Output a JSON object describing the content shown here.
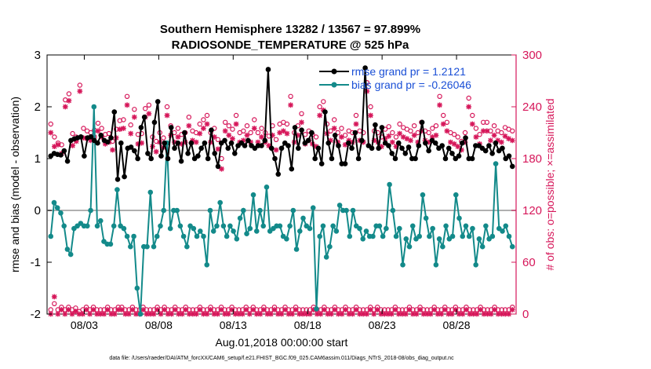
{
  "chart_data": {
    "type": "line",
    "title_line1": "Southern Hemisphere 13282 / 13567 = 97.899%",
    "title_line2": "RADIOSONDE_TEMPERATURE @ 525 hPa",
    "xlabel": "Aug.01,2018 00:00:00 start",
    "ylabel_left": "rmse and bias (model - observation)",
    "ylabel_right": "# of obs: o=possible; ×=assimilated",
    "footnote": "data file: /Users/raeder/DAI/ATM_forcXX/CAM6_setup/f.e21.FHIST_BGC.f09_025.CAM6assim.011/Diags_NTrS_2018-08/obs_diag_output.nc",
    "xlim": [
      0,
      31.5
    ],
    "ylim_left": [
      -2,
      3
    ],
    "ylim_right": [
      0,
      300
    ],
    "xtick_values": [
      2.5,
      7.5,
      12.5,
      17.5,
      22.5,
      27.5
    ],
    "xtick_labels": [
      "08/03",
      "08/08",
      "08/13",
      "08/18",
      "08/23",
      "08/28"
    ],
    "ytick_left": [
      "-2",
      "-1",
      "0",
      "1",
      "2",
      "3"
    ],
    "ytick_right": [
      "0",
      "60",
      "120",
      "180",
      "240",
      "300"
    ],
    "legend": [
      {
        "name": "rmse grand pr = 1.2121",
        "color": "#000000"
      },
      {
        "name": "bias grand pr = -0.26046",
        "color": "#138a8a"
      }
    ],
    "colors": {
      "rmse": "#000000",
      "bias": "#138a8a",
      "obs": "#d6175a",
      "axis_right": "#d6175a",
      "zero_line": "#b0b0b0"
    },
    "series": [
      {
        "name": "rmse",
        "color": "#000000",
        "values": [
          1.05,
          1.1,
          1.08,
          1.07,
          1.15,
          0.95,
          1.35,
          1.38,
          1.4,
          1.42,
          1.05,
          1.4,
          1.42,
          1.35,
          1.3,
          1.45,
          1.35,
          1.32,
          1.4,
          1.9,
          0.6,
          1.3,
          0.65,
          1.2,
          1.22,
          1.15,
          1.0,
          1.6,
          1.8,
          1.1,
          1.0,
          1.7,
          2.1,
          1.05,
          1.3,
          1.0,
          1.6,
          1.2,
          1.3,
          0.95,
          1.5,
          1.1,
          1.3,
          1.0,
          1.05,
          1.2,
          1.3,
          1.0,
          1.55,
          1.1,
          0.85,
          1.3,
          1.35,
          1.2,
          1.3,
          1.1,
          1.25,
          1.3,
          1.25,
          1.35,
          1.25,
          1.2,
          1.25,
          1.25,
          1.35,
          2.72,
          1.2,
          1.0,
          0.7,
          1.2,
          1.3,
          1.25,
          0.8,
          1.6,
          1.2,
          1.55,
          1.3,
          1.35,
          1.5,
          1.0,
          1.2,
          0.9,
          1.9,
          1.3,
          1.0,
          1.45,
          1.25,
          0.9,
          0.9,
          1.3,
          1.2,
          1.5,
          1.0,
          1.35,
          2.75,
          1.25,
          1.2,
          1.65,
          1.2,
          1.6,
          1.3,
          1.25,
          1.1,
          1.0,
          1.3,
          1.2,
          1.1,
          1.22,
          1.0,
          1.0,
          1.25,
          1.7,
          1.3,
          1.15,
          1.35,
          1.3,
          1.2,
          1.25,
          1.0,
          1.2,
          1.1,
          1.0,
          1.05,
          1.3,
          1.4,
          1.0,
          1.0,
          1.25,
          1.25,
          1.2,
          1.15,
          1.25,
          1.1,
          1.3,
          1.15,
          1.2,
          1.0,
          1.05,
          0.85
        ]
      },
      {
        "name": "bias",
        "color": "#138a8a",
        "values": [
          -0.5,
          0.15,
          0.05,
          -0.05,
          -0.3,
          -0.75,
          -0.85,
          -0.35,
          -0.3,
          -0.25,
          -0.3,
          -0.3,
          0.0,
          2.0,
          -0.3,
          -0.2,
          -0.6,
          -0.65,
          -0.65,
          -0.3,
          0.4,
          -0.3,
          -0.35,
          -0.5,
          -0.7,
          -0.5,
          -1.5,
          -2.0,
          -0.7,
          -0.7,
          0.35,
          -0.7,
          -0.5,
          -0.3,
          0.0,
          1.3,
          -0.35,
          0.0,
          0.0,
          -0.3,
          -0.5,
          -0.7,
          -0.3,
          -0.35,
          -0.5,
          -0.4,
          -0.5,
          -1.05,
          0.0,
          -0.4,
          -0.3,
          0.15,
          -0.3,
          -0.5,
          -0.3,
          -0.4,
          -0.55,
          -0.15,
          0.0,
          -0.45,
          -0.35,
          0.3,
          -0.4,
          0.0,
          -0.3,
          0.45,
          -0.4,
          -0.35,
          -0.3,
          -0.3,
          -0.5,
          -0.55,
          -0.3,
          0.0,
          -0.75,
          -0.4,
          -0.15,
          -0.3,
          -0.35,
          0.05,
          -1.9,
          -0.5,
          -0.3,
          -0.9,
          -0.7,
          -0.3,
          -0.4,
          0.1,
          0.0,
          0.0,
          -0.5,
          0.0,
          -0.3,
          -0.35,
          -0.55,
          -0.4,
          -0.5,
          -0.5,
          -0.3,
          -0.3,
          -0.5,
          -0.35,
          0.5,
          0.0,
          -0.5,
          -0.35,
          -1.05,
          -0.55,
          -0.7,
          -0.3,
          -0.55,
          -0.5,
          0.3,
          -0.15,
          -0.5,
          -0.35,
          -1.05,
          -0.55,
          -0.7,
          -0.3,
          -0.55,
          -0.5,
          0.3,
          -0.15,
          -0.5,
          -0.3,
          -0.5,
          -0.35,
          -1.05,
          -0.55,
          -0.7,
          -0.3,
          -0.55,
          -0.5,
          0.9,
          -0.35,
          -0.4,
          -0.3,
          -0.5,
          -0.7
        ]
      },
      {
        "name": "obs_possible",
        "color": "#d6175a",
        "values": [
          5,
          12,
          5,
          8,
          5,
          8,
          5,
          7,
          3,
          5,
          8,
          5,
          8,
          5,
          5,
          5,
          8,
          5,
          5,
          8,
          8,
          5,
          5,
          8,
          5,
          5,
          8,
          5,
          5,
          5,
          8,
          5,
          8,
          5,
          5,
          8,
          5,
          5,
          8,
          5,
          5,
          5,
          8,
          5,
          5,
          8,
          5,
          5,
          8,
          5,
          5,
          8,
          5,
          5,
          5,
          8,
          5,
          8,
          5,
          5,
          8,
          5,
          5,
          8,
          5,
          5,
          8,
          5,
          5,
          8,
          5,
          5,
          5,
          5,
          8,
          5,
          5,
          8,
          5,
          5,
          8,
          5,
          5,
          8,
          5,
          5,
          8,
          5,
          5,
          5,
          8,
          5,
          8,
          5,
          5,
          5,
          5,
          8,
          5,
          5,
          5,
          8,
          5,
          5,
          8,
          5,
          5,
          5,
          8,
          5,
          5,
          8,
          5,
          5,
          8,
          5,
          5,
          8,
          5,
          5,
          5,
          8,
          5,
          5,
          5,
          8,
          5,
          5,
          5,
          5,
          8
        ]
      },
      {
        "name": "obs_assimilated",
        "color": "#d6175a",
        "values": [
          0,
          20,
          0,
          5,
          0,
          5,
          0,
          3,
          0,
          0,
          5,
          0,
          5,
          0,
          0,
          0,
          5,
          0,
          0,
          5,
          5,
          0,
          0,
          5,
          0,
          0,
          5,
          0,
          0,
          0,
          5,
          0,
          5,
          0,
          0,
          5,
          0,
          0,
          5,
          0,
          0,
          0,
          5,
          0,
          0,
          5,
          0,
          0,
          5,
          0,
          0,
          5,
          0,
          0,
          0,
          5,
          0,
          5,
          0,
          0,
          5,
          0,
          0,
          5,
          0,
          0,
          5,
          0,
          0,
          5,
          0,
          0,
          0,
          0,
          5,
          0,
          0,
          5,
          0,
          0,
          5,
          0,
          0,
          5,
          0,
          0,
          5,
          0,
          0,
          0,
          5,
          0,
          5,
          0,
          0,
          0,
          0,
          5,
          0,
          0,
          0,
          5,
          0,
          0,
          5,
          0,
          0,
          0,
          5,
          0,
          0,
          5,
          0,
          0,
          5,
          0,
          0,
          5,
          0,
          0,
          0,
          5,
          0,
          0,
          0,
          5,
          0,
          0,
          0,
          0,
          5
        ]
      },
      {
        "name": "obs_possible_upper",
        "color": "#d6175a",
        "values": [
          220,
          205,
          198,
          196,
          248,
          255,
          209,
          205,
          265,
          215,
          212,
          210,
          213,
          221,
          215,
          208,
          209,
          200,
          214,
          224,
          225,
          252,
          219,
          237,
          208,
          209,
          238,
          242,
          205,
          200,
          210,
          204,
          240,
          218,
          210,
          215,
          208,
          210,
          228,
          212,
          210,
          220,
          225,
          230,
          210,
          215,
          202,
          180,
          222,
          218,
          214,
          230,
          210,
          212,
          218,
          210,
          225,
          210,
          215,
          210,
          206,
          218,
          202,
          220,
          222,
          220,
          252,
          210,
          218,
          232,
          208,
          212,
          208,
          205,
          240,
          246,
          220,
          212,
          225,
          210,
          215,
          207,
          212,
          210,
          230,
          212,
          210,
          268,
          240,
          212,
          210,
          205,
          214,
          217,
          210,
          205,
          220,
          216,
          214,
          212,
          218,
          210,
          222,
          212,
          210,
          215,
          218,
          252,
          230,
          222,
          210,
          208,
          205,
          200,
          210,
          250,
          230,
          215,
          208,
          222,
          222,
          212,
          218,
          212,
          210,
          216,
          214,
          212
        ]
      },
      {
        "name": "obs_assimilated_upper",
        "color": "#d6175a",
        "values": [
          210,
          194,
          196,
          186,
          240,
          247,
          195,
          200,
          258,
          204,
          203,
          201,
          205,
          212,
          205,
          197,
          199,
          190,
          204,
          214,
          215,
          242,
          209,
          228,
          197,
          198,
          228,
          232,
          194,
          188,
          199,
          193,
          230,
          207,
          199,
          205,
          197,
          199,
          218,
          201,
          199,
          209,
          215,
          220,
          199,
          205,
          191,
          168,
          212,
          207,
          203,
          220,
          199,
          201,
          207,
          199,
          215,
          199,
          205,
          199,
          195,
          207,
          190,
          210,
          212,
          209,
          242,
          199,
          207,
          222,
          197,
          201,
          197,
          194,
          230,
          236,
          209,
          201,
          215,
          199,
          205,
          196,
          201,
          199,
          220,
          201,
          199,
          258,
          230,
          201,
          199,
          194,
          203,
          206,
          199,
          194,
          209,
          205,
          203,
          201,
          207,
          199,
          212,
          201,
          199,
          205,
          207,
          242,
          220,
          212,
          199,
          197,
          194,
          190,
          199,
          240,
          220,
          205,
          197,
          212,
          212,
          201,
          207,
          201,
          199,
          206,
          203,
          201
        ]
      }
    ]
  }
}
